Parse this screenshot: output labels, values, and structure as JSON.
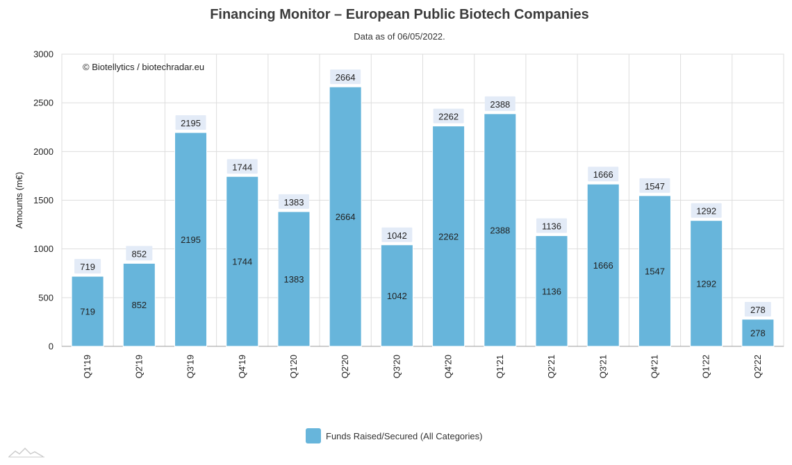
{
  "chart_data": {
    "type": "bar",
    "title": "Financing Monitor – European Public Biotech Companies",
    "subtitle": "Data as of 06/05/2022.",
    "credit": "© Biotellytics / biotechradar.eu",
    "xlabel": "",
    "ylabel": "Amounts (m€)",
    "ylim": [
      0,
      3000
    ],
    "yticks": [
      0,
      500,
      1000,
      1500,
      2000,
      2500,
      3000
    ],
    "grid": true,
    "legend_position": "bottom-center",
    "categories": [
      "Q1'19",
      "Q2'19",
      "Q3'19",
      "Q4'19",
      "Q1'20",
      "Q2'20",
      "Q3'20",
      "Q4'20",
      "Q1'21",
      "Q2'21",
      "Q3'21",
      "Q4'21",
      "Q1'22",
      "Q2'22"
    ],
    "series": [
      {
        "name": "Funds Raised/Secured (All Categories)",
        "color": "#67b5db",
        "values": [
          719,
          852,
          2195,
          1744,
          1383,
          2664,
          1042,
          2262,
          2388,
          1136,
          1666,
          1547,
          1292,
          278
        ]
      }
    ]
  },
  "colors": {
    "bar": "#67b5db",
    "label_bg": "#e3ebf7",
    "grid": "#dddddd",
    "axis": "#999999"
  }
}
